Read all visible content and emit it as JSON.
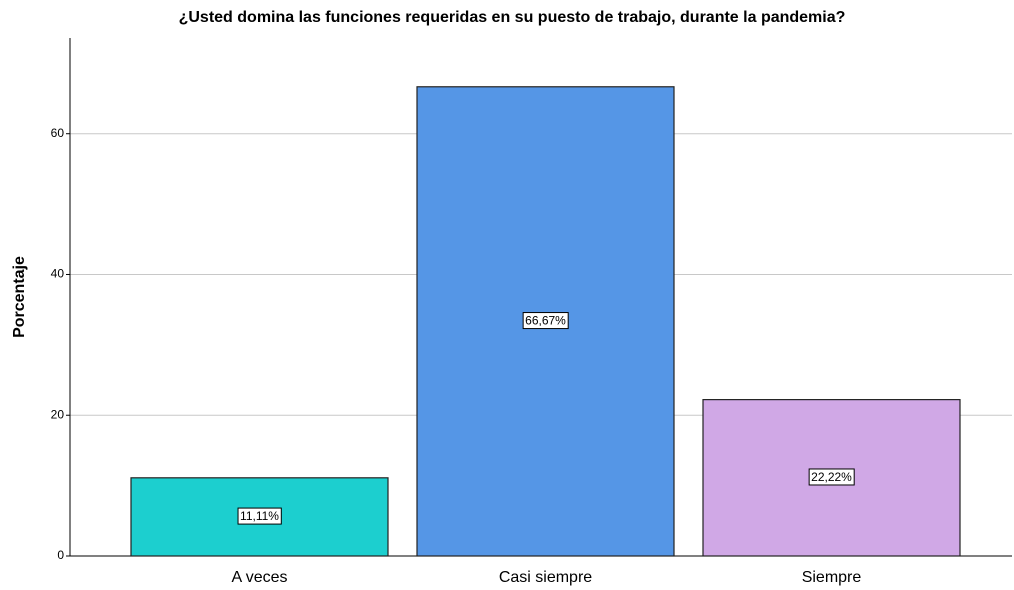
{
  "chart_data": {
    "type": "bar",
    "title": "¿Usted domina las funciones requeridas en su puesto de trabajo, durante la pandemia?",
    "y_label": "Porcentaje",
    "categories": [
      "A veces",
      "Casi siempre",
      "Siempre"
    ],
    "values": [
      11.11,
      66.67,
      22.22
    ],
    "value_labels": [
      "11,11%",
      "66,67%",
      "22,22%"
    ],
    "colors": [
      "#1ccfcf",
      "#5596e6",
      "#d0a8e6"
    ],
    "ylim": [
      0,
      73.6
    ],
    "yticks": [
      0,
      20,
      40,
      60
    ],
    "grid": true
  }
}
